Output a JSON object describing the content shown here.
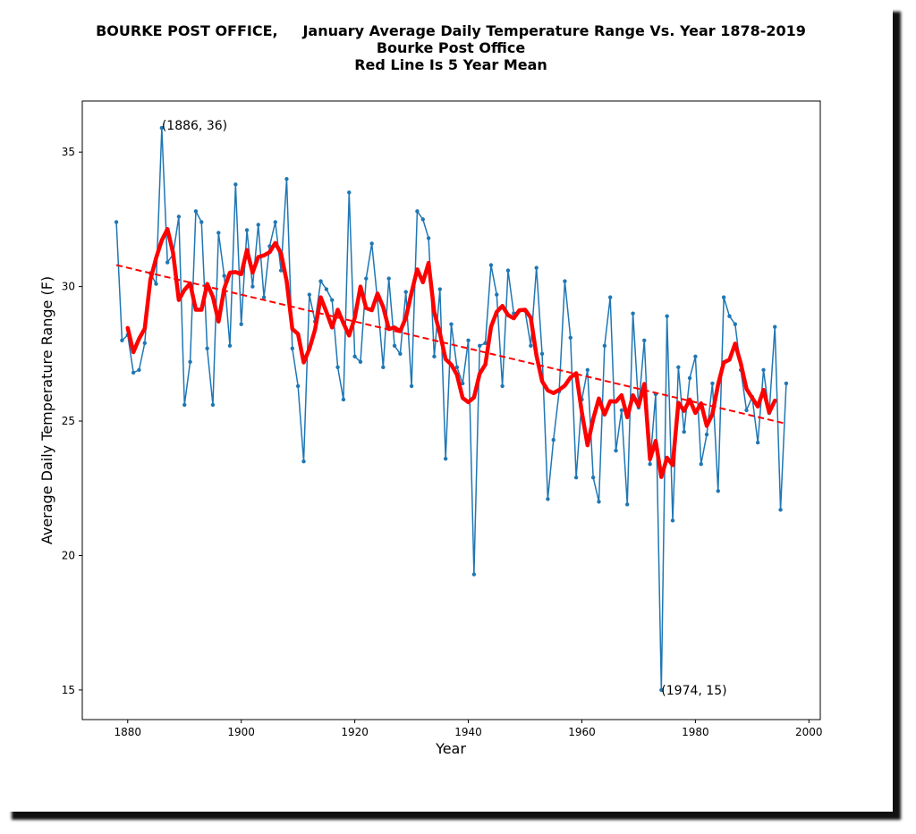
{
  "chart_data": {
    "type": "line",
    "title": [
      "BOURKE POST OFFICE,     January Average Daily Temperature Range Vs. Year 1878-2019",
      "Bourke Post Office",
      "Red Line Is 5 Year Mean"
    ],
    "x_label": "Year",
    "y_label": "Average Daily Temperature Range (F)",
    "x": [
      1878,
      1879,
      1880,
      1881,
      1882,
      1883,
      1884,
      1885,
      1886,
      1887,
      1888,
      1889,
      1890,
      1891,
      1892,
      1893,
      1894,
      1895,
      1896,
      1897,
      1898,
      1899,
      1900,
      1901,
      1902,
      1903,
      1904,
      1905,
      1906,
      1907,
      1908,
      1909,
      1910,
      1911,
      1912,
      1913,
      1914,
      1915,
      1916,
      1917,
      1918,
      1919,
      1920,
      1921,
      1922,
      1923,
      1924,
      1925,
      1926,
      1927,
      1928,
      1929,
      1930,
      1931,
      1932,
      1933,
      1934,
      1935,
      1936,
      1937,
      1938,
      1939,
      1940,
      1941,
      1942,
      1943,
      1944,
      1945,
      1946,
      1947,
      1948,
      1949,
      1950,
      1951,
      1952,
      1953,
      1954,
      1955,
      1956,
      1957,
      1958,
      1959,
      1960,
      1961,
      1962,
      1963,
      1964,
      1965,
      1966,
      1967,
      1968,
      1969,
      1970,
      1971,
      1972,
      1973,
      1974,
      1975,
      1976,
      1977,
      1978,
      1979,
      1980,
      1981,
      1982,
      1983,
      1984,
      1985,
      1986,
      1987,
      1988,
      1989,
      1990,
      1991,
      1992,
      1993,
      1994,
      1995,
      1996
    ],
    "series": [
      {
        "color": "#1f77b4",
        "linewidth": 1.5,
        "marker": true,
        "values": [
          32.4,
          28.0,
          28.2,
          26.8,
          26.9,
          27.9,
          30.5,
          30.1,
          35.9,
          30.9,
          31.2,
          32.6,
          25.6,
          27.2,
          32.8,
          32.4,
          27.7,
          25.6,
          32.0,
          30.4,
          27.8,
          33.8,
          28.6,
          32.1,
          30.0,
          32.3,
          29.6,
          31.5,
          32.4,
          30.6,
          34.0,
          27.7,
          26.3,
          23.5,
          29.7,
          28.7,
          30.2,
          29.9,
          29.5,
          27.0,
          25.8,
          33.5,
          27.4,
          27.2,
          30.3,
          31.6,
          29.5,
          27.0,
          30.3,
          27.8,
          27.5,
          29.8,
          26.3,
          32.8,
          32.5,
          31.8,
          27.4,
          29.9,
          23.6,
          28.6,
          27.0,
          26.4,
          28.0,
          19.3,
          27.8,
          27.9,
          30.8,
          29.7,
          26.3,
          30.6,
          29.0,
          29.1,
          29.1,
          27.8,
          30.7,
          27.5,
          22.1,
          24.3,
          26.1,
          30.2,
          28.1,
          22.9,
          25.8,
          26.9,
          22.9,
          22.0,
          27.8,
          29.6,
          23.9,
          25.4,
          21.9,
          29.0,
          25.5,
          28.0,
          23.4,
          26.0,
          15.0,
          28.9,
          21.3,
          27.0,
          24.6,
          26.6,
          27.4,
          23.4,
          24.5,
          26.4,
          22.4,
          29.6,
          28.9,
          28.6,
          26.9,
          25.4,
          25.9,
          24.2,
          26.9,
          25.3,
          28.5,
          21.7,
          26.4
        ]
      },
      {
        "color": "#ff0000",
        "linewidth": 4.5,
        "marker": false,
        "values": [
          null,
          null,
          28.46,
          27.56,
          28.06,
          28.44,
          30.26,
          31.06,
          31.72,
          32.14,
          31.24,
          29.5,
          29.88,
          30.12,
          29.14,
          29.14,
          30.1,
          29.62,
          28.7,
          29.92,
          30.52,
          30.54,
          30.46,
          31.36,
          30.52,
          31.1,
          31.16,
          31.28,
          31.62,
          31.24,
          30.2,
          28.42,
          28.24,
          27.18,
          27.68,
          28.4,
          29.6,
          29.06,
          28.48,
          29.14,
          28.64,
          28.18,
          28.84,
          30.0,
          29.2,
          29.12,
          29.74,
          29.24,
          28.42,
          28.48,
          28.34,
          28.84,
          29.78,
          30.64,
          30.16,
          30.88,
          29.04,
          28.26,
          27.3,
          27.1,
          26.72,
          25.86,
          25.7,
          25.88,
          26.76,
          27.1,
          28.5,
          29.06,
          29.28,
          28.94,
          28.82,
          29.12,
          29.14,
          28.84,
          27.44,
          26.48,
          26.14,
          26.04,
          26.16,
          26.32,
          26.62,
          26.78,
          25.32,
          24.1,
          25.08,
          25.84,
          25.24,
          25.74,
          25.72,
          25.96,
          25.14,
          25.96,
          25.56,
          26.38,
          23.58,
          24.26,
          22.92,
          23.64,
          23.36,
          25.68,
          25.38,
          25.8,
          25.3,
          25.66,
          24.82,
          25.26,
          26.36,
          27.18,
          27.28,
          27.88,
          27.14,
          26.2,
          25.86,
          25.54,
          26.16,
          25.32,
          25.76,
          null,
          null
        ]
      },
      {
        "color": "#ff0000",
        "linewidth": 2,
        "marker": false,
        "linestyle": "dashed",
        "x": [
          1878,
          1996
        ],
        "values": [
          30.8,
          24.9
        ]
      }
    ],
    "annotations": [
      {
        "text": "(1886, 36)",
        "x": 1886,
        "y": 36
      },
      {
        "text": "(1974, 15)",
        "x": 1974,
        "y": 15
      }
    ],
    "xlim": [
      1872,
      2002
    ],
    "ylim": [
      13.9,
      36.9
    ],
    "xticks": [
      1880,
      1900,
      1920,
      1940,
      1960,
      1980,
      2000
    ],
    "yticks": [
      15,
      20,
      25,
      30,
      35
    ],
    "grid": false
  }
}
